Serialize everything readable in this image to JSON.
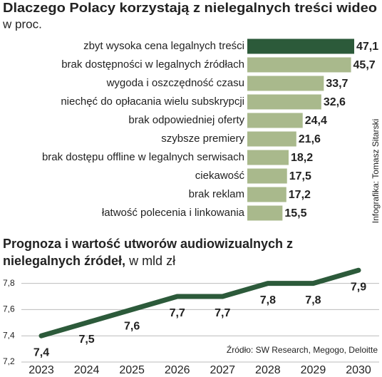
{
  "chart_data": [
    {
      "type": "hbar",
      "title": "Dlaczego Polacy korzystają z nielegalnych treści wideo",
      "subtitle": "w proc.",
      "categories": [
        "zbyt wysoka cena legalnych treści",
        "brak dostępności w legalnych źródłach",
        "wygoda i oszczędność czasu",
        "niechęć do opłacania wielu subskrypcji",
        "brak odpowiedniej oferty",
        "szybsze premiery",
        "brak dostępu offline w legalnych serwisach",
        "ciekawość",
        "brak reklam",
        "łatwość polecenia i linkowania"
      ],
      "values": [
        47.1,
        45.7,
        33.7,
        32.6,
        24.4,
        21.6,
        18.2,
        17.5,
        17.2,
        15.5
      ],
      "value_labels": [
        "47,1",
        "45,7",
        "33,7",
        "32,6",
        "24,4",
        "21,6",
        "18,2",
        "17,5",
        "17,2",
        "15,5"
      ],
      "colors": [
        "#2c5a3a",
        "#a9b98c",
        "#a9b98c",
        "#a9b98c",
        "#a9b98c",
        "#a9b98c",
        "#a9b98c",
        "#a9b98c",
        "#a9b98c",
        "#a9b98c"
      ],
      "credit": "Infografika: Tomasz Sitarski"
    },
    {
      "type": "line",
      "title": "Prognoza i wartość utworów audiowizualnych z nielegalnych źródeł,",
      "unit": "w mld zł",
      "categories": [
        "2023",
        "2024",
        "2025",
        "2026",
        "2027",
        "2028",
        "2029",
        "2030"
      ],
      "series": [
        {
          "color": "#2c5a3a",
          "values": [
            7.4,
            7.5,
            7.6,
            7.7,
            7.7,
            7.8,
            7.8,
            7.9
          ],
          "value_labels": [
            "7,4",
            "7,5",
            "7,6",
            "7,7",
            "7,7",
            "7,8",
            "7,8",
            "7,9"
          ]
        }
      ],
      "ylim": [
        7.2,
        7.95
      ],
      "yticks": [
        {
          "value": 7.2,
          "label": "7,2"
        },
        {
          "value": 7.4,
          "label": "7,4"
        },
        {
          "value": 7.6,
          "label": "7,6"
        },
        {
          "value": 7.8,
          "label": "7,8"
        }
      ],
      "grid": true,
      "source": "Źródło: SW Research, Megogo, Deloitte"
    }
  ]
}
